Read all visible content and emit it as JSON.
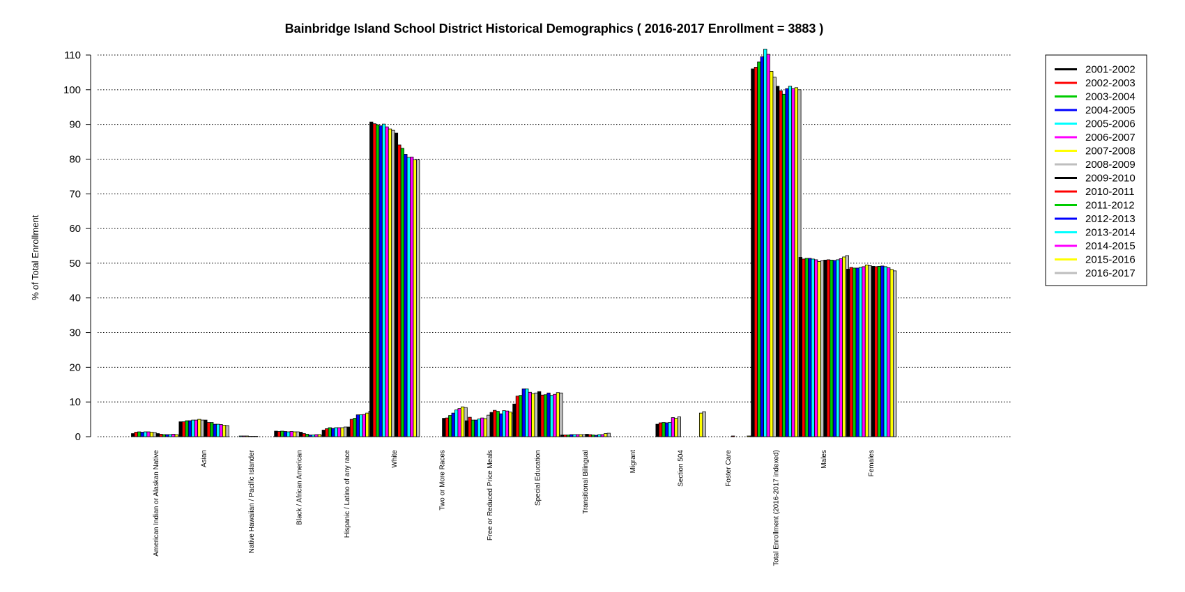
{
  "chart_data": {
    "type": "bar",
    "title": "Bainbridge Island School District Historical Demographics  ( 2016-2017 Enrollment =  3883 )",
    "ylabel": "% of Total Enrollment",
    "xlabel": "",
    "ylim": [
      0,
      110
    ],
    "yticks": [
      0,
      10,
      20,
      30,
      40,
      50,
      60,
      70,
      80,
      90,
      100,
      110
    ],
    "grid": "horizontal dotted",
    "legend_position": "top-right",
    "categories": [
      "American Indian or Alaskan Native",
      "Asian",
      "Native Hawaiian / Pacific Islander",
      "Black / African American",
      "Hispanic / Latino of any race",
      "White",
      "Two or More Races",
      "Free or Reduced Price Meals",
      "Special Education",
      "Transitional Bilingual",
      "Migrant",
      "Section 504",
      "Foster Care",
      "Total Enrollment (2016-2017 indexed)",
      "Males",
      "Females"
    ],
    "series": [
      {
        "name": "2001-2002",
        "color": "#000000",
        "values": [
          0.9,
          4.3,
          0.0,
          1.6,
          1.9,
          90.7,
          0.0,
          4.6,
          9.4,
          0.5,
          0.0,
          3.6,
          0.0,
          106.0,
          51.7,
          48.3
        ]
      },
      {
        "name": "2002-2003",
        "color": "#ff0000",
        "values": [
          1.3,
          4.3,
          0.0,
          1.5,
          2.3,
          90.2,
          0.0,
          5.6,
          11.7,
          0.5,
          0.0,
          4.0,
          0.0,
          106.5,
          51.2,
          48.8
        ]
      },
      {
        "name": "2003-2004",
        "color": "#00cc00",
        "values": [
          1.4,
          4.6,
          0.0,
          1.6,
          2.6,
          89.9,
          0.0,
          4.8,
          11.9,
          0.5,
          0.0,
          4.1,
          0.0,
          108.0,
          51.4,
          48.6
        ]
      },
      {
        "name": "2004-2005",
        "color": "#0000ff",
        "values": [
          1.3,
          4.6,
          0.0,
          1.5,
          2.4,
          89.6,
          0.0,
          4.8,
          13.8,
          0.6,
          0.0,
          4.0,
          0.0,
          109.5,
          51.4,
          48.6
        ]
      },
      {
        "name": "2005-2006",
        "color": "#00ffff",
        "values": [
          1.4,
          4.8,
          0.2,
          1.4,
          2.6,
          90.1,
          0.0,
          5.1,
          13.8,
          0.6,
          0.0,
          4.1,
          0.0,
          111.7,
          51.2,
          48.8
        ]
      },
      {
        "name": "2006-2007",
        "color": "#ff00ff",
        "values": [
          1.4,
          4.8,
          0.2,
          1.5,
          2.6,
          89.3,
          0.0,
          5.4,
          12.8,
          0.6,
          0.0,
          5.5,
          0.0,
          110.2,
          51.0,
          49.0
        ]
      },
      {
        "name": "2007-2008",
        "color": "#ffff00",
        "values": [
          1.3,
          5.0,
          0.2,
          1.4,
          2.6,
          88.7,
          0.0,
          5.2,
          12.4,
          0.6,
          0.0,
          5.3,
          0.0,
          105.3,
          50.5,
          49.5
        ]
      },
      {
        "name": "2008-2009",
        "color": "#bebebe",
        "values": [
          1.2,
          4.8,
          0.1,
          1.4,
          2.8,
          88.3,
          0.0,
          6.2,
          12.6,
          0.6,
          0.0,
          5.7,
          0.0,
          103.6,
          50.7,
          49.3
        ]
      },
      {
        "name": "2009-2010",
        "color": "#000000",
        "values": [
          0.9,
          4.8,
          0.1,
          1.3,
          2.8,
          87.5,
          5.3,
          7.0,
          13.0,
          0.7,
          0.0,
          0.0,
          0.0,
          101.0,
          50.9,
          49.1
        ]
      },
      {
        "name": "2010-2011",
        "color": "#ff0000",
        "values": [
          0.7,
          4.1,
          0.1,
          0.9,
          5.0,
          84.1,
          5.4,
          7.6,
          12.0,
          0.6,
          0.0,
          0.0,
          0.2,
          99.7,
          51.0,
          49.0
        ]
      },
      {
        "name": "2011-2012",
        "color": "#00cc00",
        "values": [
          0.6,
          4.1,
          0.0,
          0.7,
          5.3,
          83.1,
          6.1,
          7.3,
          12.1,
          0.5,
          0.0,
          0.0,
          0.0,
          98.7,
          50.9,
          49.1
        ]
      },
      {
        "name": "2012-2013",
        "color": "#0000ff",
        "values": [
          0.6,
          3.6,
          0.0,
          0.5,
          6.3,
          81.4,
          6.8,
          6.6,
          12.6,
          0.4,
          0.0,
          0.0,
          0.0,
          100.3,
          50.8,
          49.2
        ]
      },
      {
        "name": "2013-2014",
        "color": "#00ffff",
        "values": [
          0.6,
          3.6,
          0.0,
          0.5,
          6.3,
          80.5,
          7.7,
          7.5,
          11.9,
          0.6,
          0.0,
          0.0,
          0.0,
          101.0,
          51.0,
          49.0
        ]
      },
      {
        "name": "2014-2015",
        "color": "#ff00ff",
        "values": [
          0.7,
          3.5,
          0.0,
          0.6,
          6.4,
          80.6,
          8.1,
          7.4,
          12.2,
          0.6,
          0.0,
          0.0,
          0.0,
          100.3,
          51.3,
          48.7
        ]
      },
      {
        "name": "2015-2016",
        "color": "#ffff00",
        "values": [
          0.6,
          3.3,
          0.0,
          0.6,
          6.8,
          79.8,
          8.6,
          7.1,
          12.7,
          0.9,
          0.0,
          6.8,
          0.2,
          100.6,
          51.8,
          48.2
        ]
      },
      {
        "name": "2016-2017",
        "color": "#bebebe",
        "values": [
          0.5,
          3.2,
          0.0,
          0.4,
          7.3,
          79.8,
          8.4,
          6.8,
          12.6,
          1.0,
          0.0,
          7.2,
          0.2,
          100.0,
          52.2,
          47.8
        ]
      }
    ]
  }
}
